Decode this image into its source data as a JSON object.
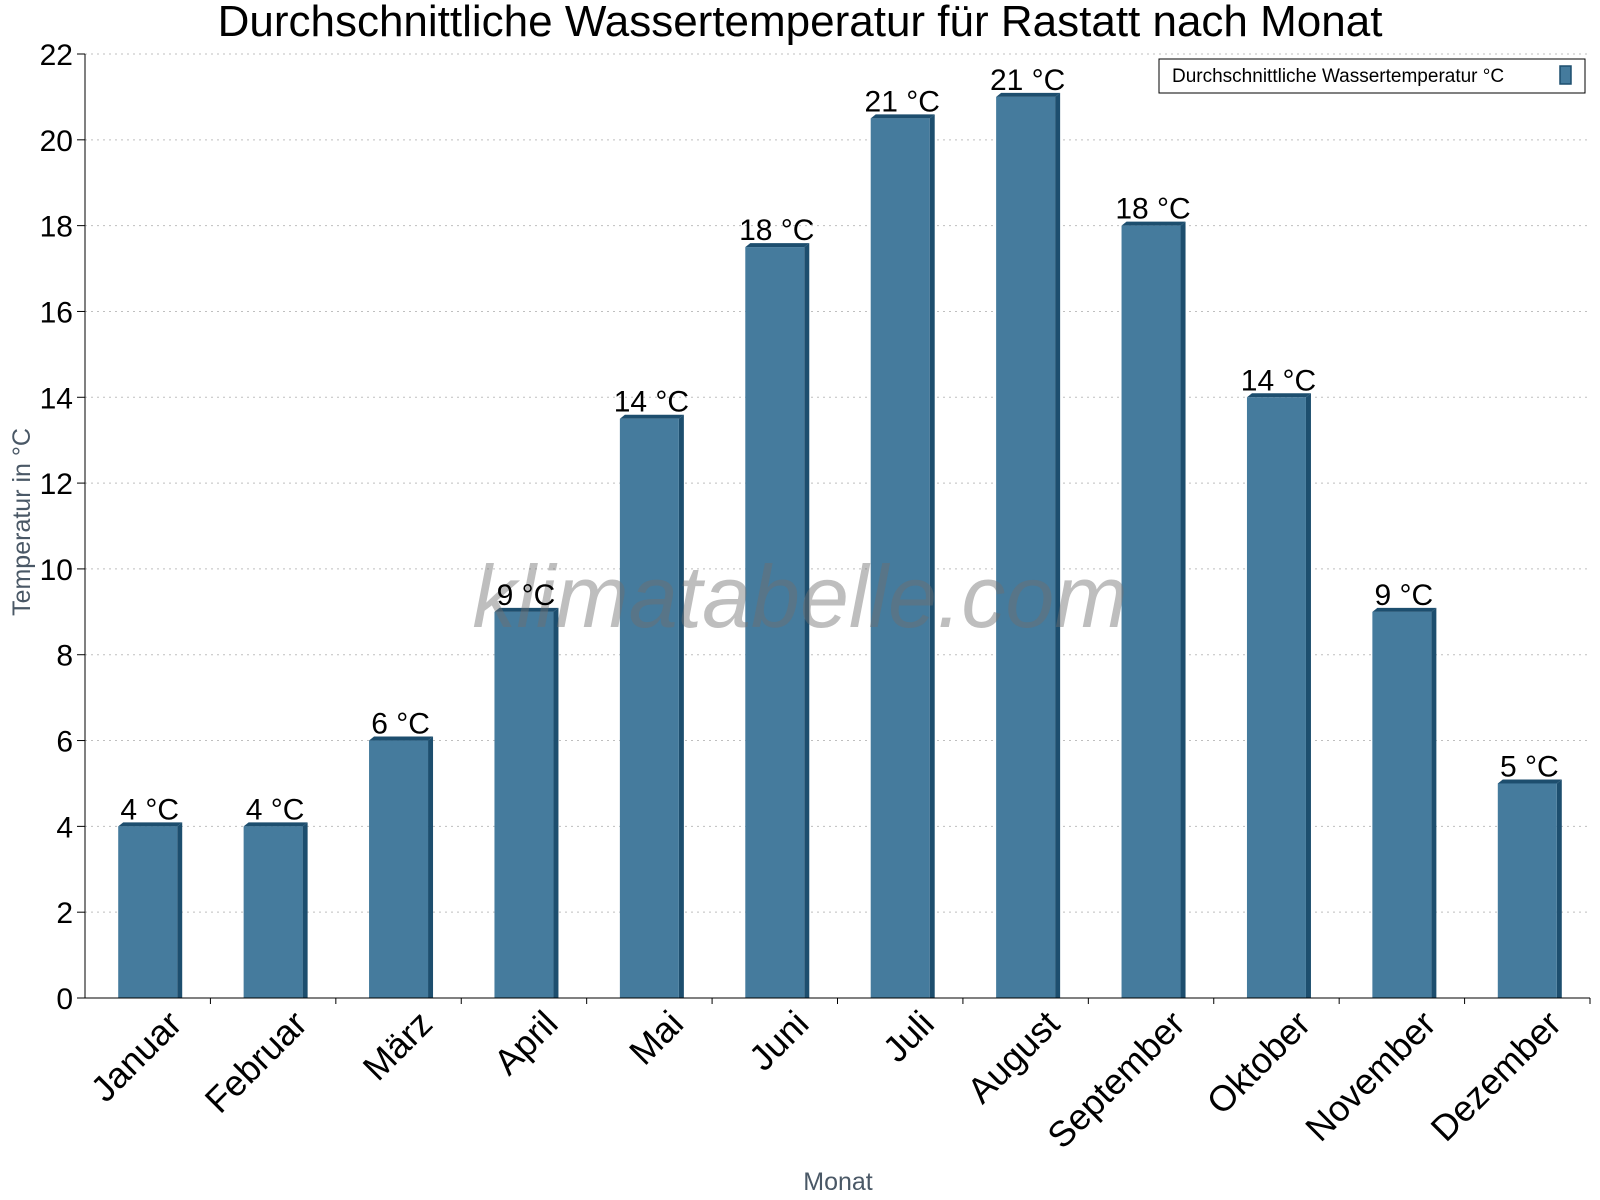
{
  "chart_data": {
    "type": "bar",
    "title": "Durchschnittliche Wassertemperatur für Rastatt nach Monat",
    "xlabel": "Monat",
    "ylabel": "Temperatur in °C",
    "categories": [
      "Januar",
      "Februar",
      "März",
      "April",
      "Mai",
      "Juni",
      "Juli",
      "August",
      "September",
      "Oktober",
      "November",
      "Dezember"
    ],
    "series": [
      {
        "name": "Durchschnittliche Wassertemperatur °C",
        "values": [
          4,
          4,
          6,
          9,
          13.5,
          17.5,
          20.5,
          21,
          18,
          14,
          9,
          5
        ],
        "labels": [
          "4 °C",
          "4 °C",
          "6 °C",
          "9 °C",
          "14 °C",
          "18 °C",
          "21 °C",
          "21 °C",
          "18 °C",
          "14 °C",
          "9 °C",
          "5 °C"
        ],
        "color": "#457b9d",
        "edge_color": "#1d4e6e"
      }
    ],
    "ylim": [
      0,
      22
    ],
    "yticks": [
      0,
      2,
      4,
      6,
      8,
      10,
      12,
      14,
      16,
      18,
      20,
      22
    ],
    "grid": true,
    "legend_position": "top-right"
  },
  "watermark": "klimatabelle.com"
}
